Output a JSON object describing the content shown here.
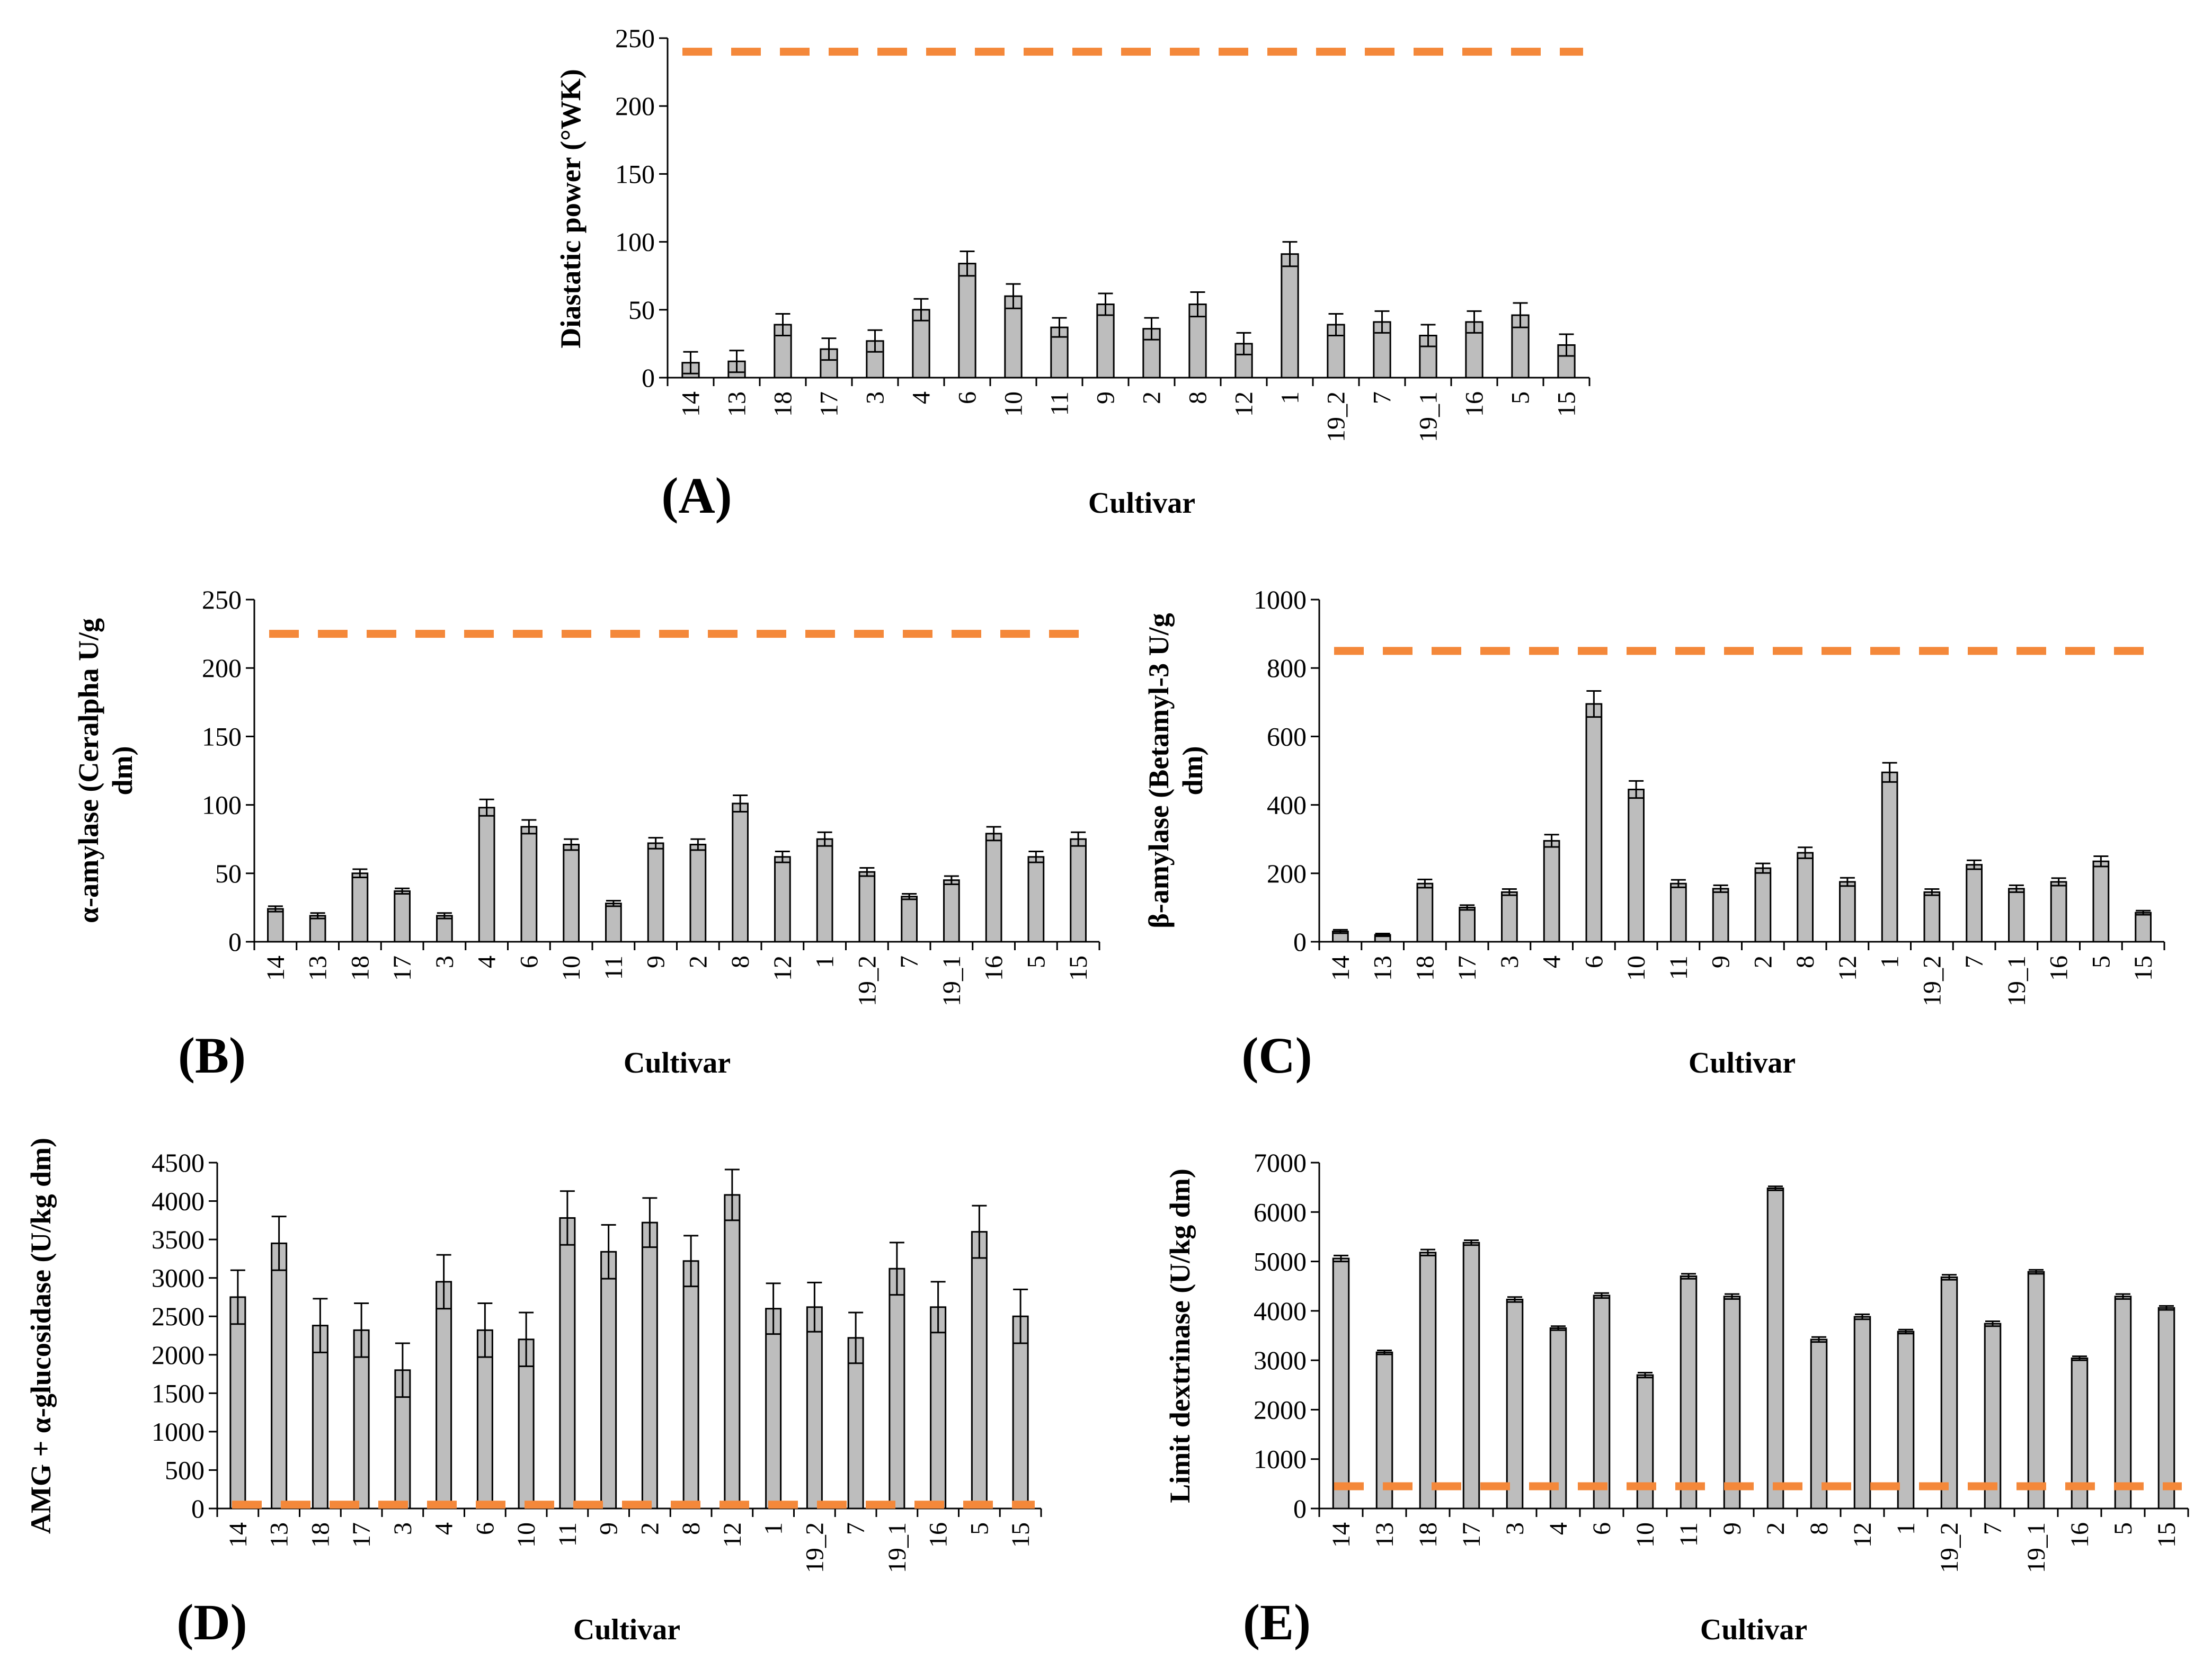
{
  "chart_data": [
    {
      "panel": "(A)",
      "type": "bar",
      "xlabel": "Cultivar",
      "ylabel": "Diastatic power (°WK)",
      "ylim": [
        0,
        250
      ],
      "yticks": [
        0,
        50,
        100,
        150,
        200,
        250
      ],
      "categories": [
        "14",
        "13",
        "18",
        "17",
        "3",
        "4",
        "6",
        "10",
        "11",
        "9",
        "2",
        "8",
        "12",
        "1",
        "19_2",
        "7",
        "19_1",
        "16",
        "5",
        "15"
      ],
      "values": [
        11,
        12,
        39,
        21,
        27,
        50,
        84,
        60,
        37,
        54,
        36,
        54,
        25,
        91,
        39,
        41,
        31,
        41,
        46,
        24
      ],
      "errors": [
        8,
        8,
        8,
        8,
        8,
        8,
        9,
        9,
        7,
        8,
        8,
        9,
        8,
        9,
        8,
        8,
        8,
        8,
        9,
        8
      ],
      "reference_line": 240,
      "reference_color": "#f4883a",
      "bar_color": "#bdbdbd"
    },
    {
      "panel": "(B)",
      "type": "bar",
      "xlabel": "Cultivar",
      "ylabel": "α-amylase (Ceralpha U/g dm)",
      "ylim": [
        0,
        250
      ],
      "yticks": [
        0,
        50,
        100,
        150,
        200,
        250
      ],
      "categories": [
        "14",
        "13",
        "18",
        "17",
        "3",
        "4",
        "6",
        "10",
        "11",
        "9",
        "2",
        "8",
        "12",
        "1",
        "19_2",
        "7",
        "19_1",
        "16",
        "5",
        "15"
      ],
      "values": [
        24,
        19,
        50,
        37,
        19,
        98,
        84,
        71,
        28,
        72,
        71,
        101,
        62,
        75,
        51,
        33,
        45,
        79,
        62,
        75
      ],
      "errors": [
        2,
        2,
        3,
        2,
        2,
        6,
        5,
        4,
        2,
        4,
        4,
        6,
        4,
        5,
        3,
        2,
        3,
        5,
        4,
        5
      ],
      "reference_line": 225,
      "reference_color": "#f4883a",
      "bar_color": "#bdbdbd"
    },
    {
      "panel": "(C)",
      "type": "bar",
      "xlabel": "Cultivar",
      "ylabel": "β-amylase (Betamyl-3 U/g dm)",
      "ylim": [
        0,
        1000
      ],
      "yticks": [
        0,
        200,
        400,
        600,
        800,
        1000
      ],
      "categories": [
        "14",
        "13",
        "18",
        "17",
        "3",
        "4",
        "6",
        "10",
        "11",
        "9",
        "2",
        "8",
        "12",
        "1",
        "19_2",
        "7",
        "19_1",
        "16",
        "5",
        "15"
      ],
      "values": [
        30,
        20,
        170,
        100,
        145,
        295,
        695,
        445,
        170,
        155,
        215,
        260,
        175,
        495,
        145,
        225,
        155,
        175,
        235,
        85
      ],
      "errors": [
        5,
        4,
        12,
        7,
        9,
        18,
        38,
        25,
        11,
        10,
        14,
        16,
        12,
        28,
        9,
        13,
        10,
        11,
        15,
        6
      ],
      "reference_line": 850,
      "reference_color": "#f4883a",
      "bar_color": "#bdbdbd"
    },
    {
      "panel": "(D)",
      "type": "bar",
      "xlabel": "Cultivar",
      "ylabel": "AMG + α-glucosidase (U/kg dm)",
      "ylim": [
        0,
        4500
      ],
      "yticks": [
        0,
        500,
        1000,
        1500,
        2000,
        2500,
        3000,
        3500,
        4000,
        4500
      ],
      "categories": [
        "14",
        "13",
        "18",
        "17",
        "3",
        "4",
        "6",
        "10",
        "11",
        "9",
        "2",
        "8",
        "12",
        "1",
        "19_2",
        "7",
        "19_1",
        "16",
        "5",
        "15"
      ],
      "values": [
        2750,
        3450,
        2380,
        2320,
        1800,
        2950,
        2320,
        2200,
        3780,
        3340,
        3720,
        3220,
        4080,
        2600,
        2620,
        2220,
        3120,
        2620,
        3600,
        2500
      ],
      "errors": [
        350,
        350,
        350,
        350,
        350,
        350,
        350,
        350,
        350,
        350,
        320,
        330,
        330,
        330,
        320,
        330,
        340,
        330,
        340,
        350
      ],
      "reference_line": 50,
      "reference_color": "#f4883a",
      "bar_color": "#bdbdbd"
    },
    {
      "panel": "(E)",
      "type": "bar",
      "xlabel": "Cultivar",
      "ylabel": "Limit dextrinase (U/kg dm)",
      "ylim": [
        0,
        7000
      ],
      "yticks": [
        0,
        1000,
        2000,
        3000,
        4000,
        5000,
        6000,
        7000
      ],
      "categories": [
        "14",
        "13",
        "18",
        "17",
        "3",
        "4",
        "6",
        "10",
        "11",
        "9",
        "2",
        "8",
        "12",
        "1",
        "19_2",
        "7",
        "19_1",
        "16",
        "5",
        "15"
      ],
      "values": [
        5060,
        3160,
        5180,
        5380,
        4230,
        3650,
        4310,
        2700,
        4700,
        4290,
        6480,
        3420,
        3880,
        3580,
        4680,
        3740,
        4790,
        3040,
        4290,
        4060
      ],
      "errors": [
        60,
        40,
        60,
        50,
        50,
        40,
        50,
        50,
        50,
        50,
        40,
        50,
        50,
        40,
        50,
        50,
        40,
        40,
        50,
        40
      ],
      "reference_line": 450,
      "reference_color": "#f4883a",
      "bar_color": "#bdbdbd"
    }
  ]
}
